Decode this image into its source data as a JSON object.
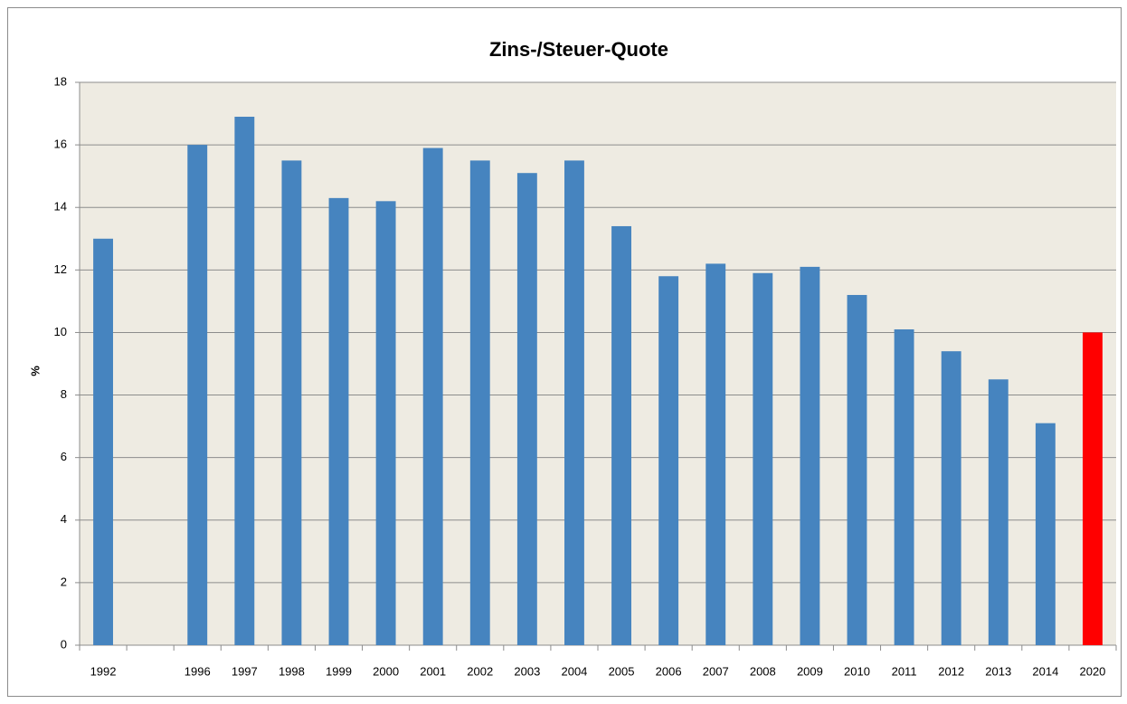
{
  "chart_data": {
    "type": "bar",
    "title": "Zins-/Steuer-Quote",
    "y_label": "%",
    "categories": [
      "1992",
      null,
      "1996",
      "1997",
      "1998",
      "1999",
      "2000",
      "2001",
      "2002",
      "2003",
      "2004",
      "2005",
      "2006",
      "2007",
      "2008",
      "2009",
      "2010",
      "2011",
      "2012",
      "2013",
      "2014",
      "2020"
    ],
    "values": [
      13.0,
      null,
      16.0,
      16.9,
      15.5,
      14.3,
      14.2,
      15.9,
      15.5,
      15.1,
      15.5,
      13.4,
      11.8,
      12.2,
      11.9,
      12.1,
      11.2,
      10.1,
      9.4,
      8.5,
      7.1,
      10.0
    ],
    "colors": [
      "#4684bf",
      null,
      "#4684bf",
      "#4684bf",
      "#4684bf",
      "#4684bf",
      "#4684bf",
      "#4684bf",
      "#4684bf",
      "#4684bf",
      "#4684bf",
      "#4684bf",
      "#4684bf",
      "#4684bf",
      "#4684bf",
      "#4684bf",
      "#4684bf",
      "#4684bf",
      "#4684bf",
      "#4684bf",
      "#4684bf",
      "#ff0000"
    ],
    "ylim": [
      0,
      18
    ],
    "yticks": [
      0,
      2,
      4,
      6,
      8,
      10,
      12,
      14,
      16,
      18
    ],
    "grid": true
  }
}
